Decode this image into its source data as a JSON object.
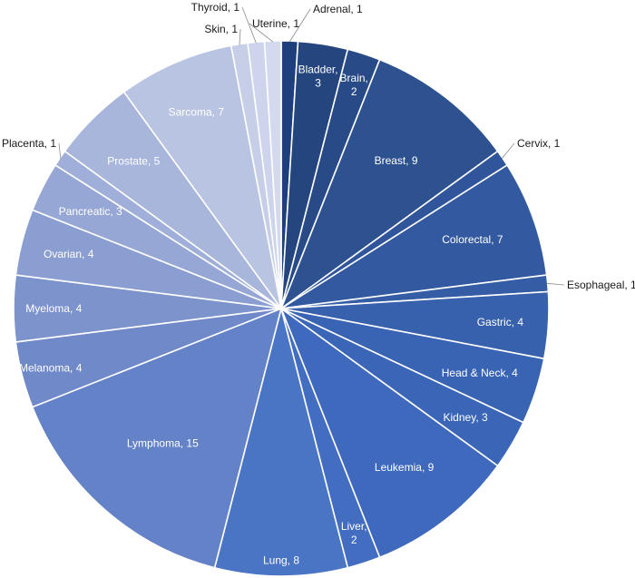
{
  "chart_data": {
    "type": "pie",
    "title": "",
    "legend": "none",
    "slices": [
      {
        "name": "Adrenal",
        "value": 1,
        "label": "Adrenal, 1",
        "color": "#1f3f7c"
      },
      {
        "name": "Bladder",
        "value": 3,
        "label": "Bladder, 3",
        "color": "#25457f"
      },
      {
        "name": "Brain",
        "value": 2,
        "label": "Brain, 2",
        "color": "#284a86"
      },
      {
        "name": "Breast",
        "value": 9,
        "label": "Breast, 9",
        "color": "#2e5190"
      },
      {
        "name": "Cervix",
        "value": 1,
        "label": "Cervix, 1",
        "color": "#31559a"
      },
      {
        "name": "Colorectal",
        "value": 7,
        "label": "Colorectal, 7",
        "color": "#335aa0"
      },
      {
        "name": "Esophageal",
        "value": 1,
        "label": "Esophageal, 1",
        "color": "#355da6"
      },
      {
        "name": "Gastric",
        "value": 4,
        "label": "Gastric, 4",
        "color": "#3760ad"
      },
      {
        "name": "Head & Neck",
        "value": 4,
        "label": "Head & Neck, 4",
        "color": "#3963b3"
      },
      {
        "name": "Kidney",
        "value": 3,
        "label": "Kidney, 3",
        "color": "#3b66b8"
      },
      {
        "name": "Leukemia",
        "value": 9,
        "label": "Leukemia, 9",
        "color": "#3e69bd"
      },
      {
        "name": "Liver",
        "value": 2,
        "label": "Liver, 2",
        "color": "#426dc0"
      },
      {
        "name": "Lung",
        "value": 8,
        "label": "Lung, 8",
        "color": "#4a74c4"
      },
      {
        "name": "Lymphoma",
        "value": 15,
        "label": "Lymphoma, 15",
        "color": "#6482c7"
      },
      {
        "name": "Melanoma",
        "value": 4,
        "label": "Melanoma, 4",
        "color": "#7089c8"
      },
      {
        "name": "Myeloma",
        "value": 4,
        "label": "Myeloma, 4",
        "color": "#7d93cc"
      },
      {
        "name": "Ovarian",
        "value": 4,
        "label": "Ovarian, 4",
        "color": "#8b9ed1"
      },
      {
        "name": "Pancreatic",
        "value": 3,
        "label": "Pancreatic, 3",
        "color": "#97a7d5"
      },
      {
        "name": "Placenta",
        "value": 1,
        "label": "Placenta, 1",
        "color": "#a0afd9"
      },
      {
        "name": "Prostate",
        "value": 5,
        "label": "Prostate, 5",
        "color": "#a8b6dc"
      },
      {
        "name": "Sarcoma",
        "value": 7,
        "label": "Sarcoma, 7",
        "color": "#b9c4e3"
      },
      {
        "name": "Skin",
        "value": 1,
        "label": "Skin, 1",
        "color": "#c7cfe8"
      },
      {
        "name": "Thyroid",
        "value": 1,
        "label": "Thyroid, 1",
        "color": "#cdd4eb"
      },
      {
        "name": "Uterine",
        "value": 1,
        "label": "Uterine, 1",
        "color": "#d3d9ee"
      }
    ]
  }
}
